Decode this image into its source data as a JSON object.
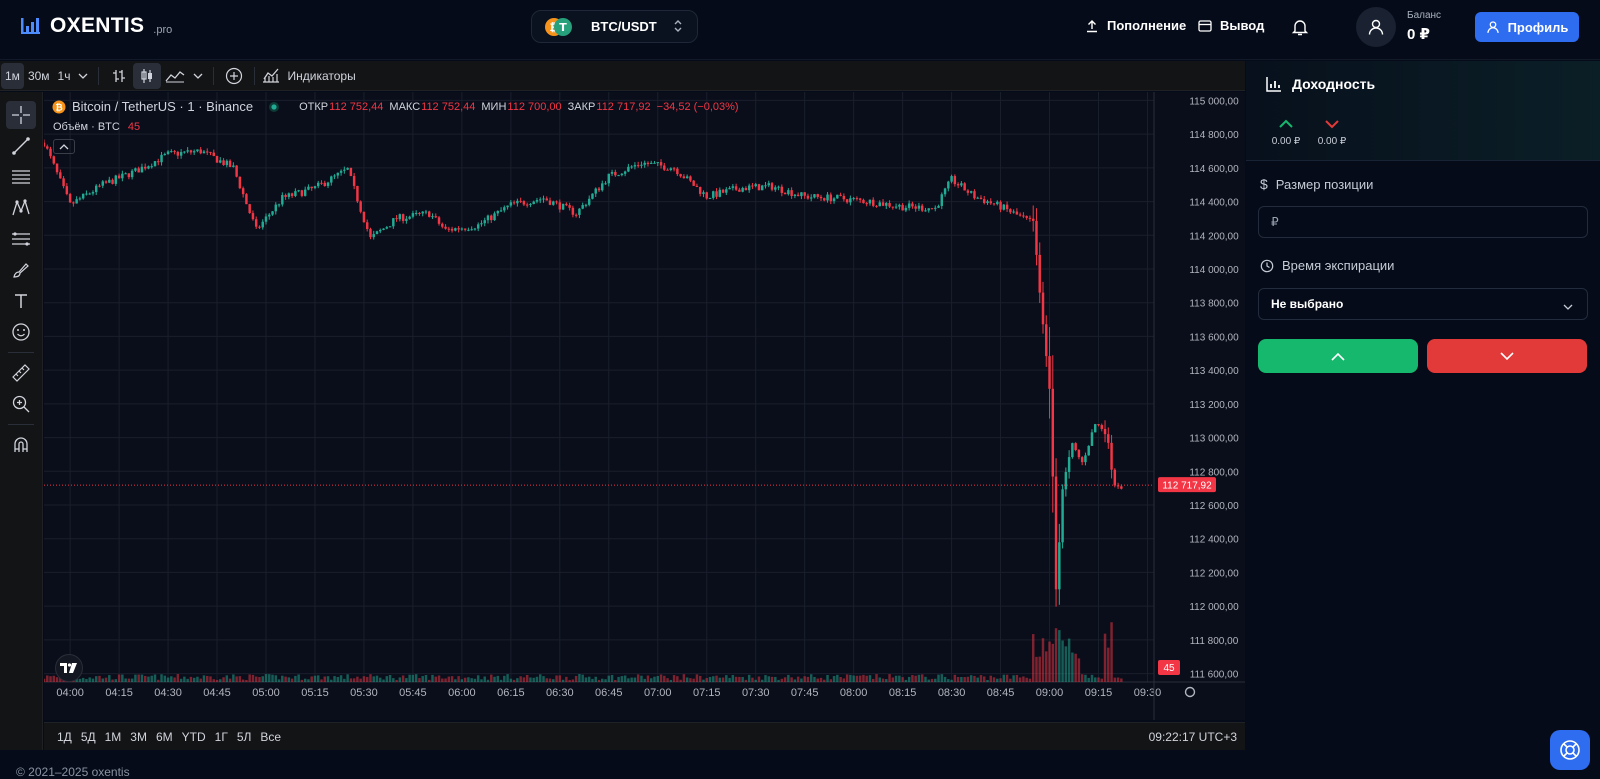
{
  "header": {
    "logo_name": "OXENTIS",
    "logo_sub": ".pro",
    "pair": "BTC/USDT",
    "deposit": "Пополнение",
    "withdraw": "Вывод",
    "balance_label": "Баланс",
    "balance_value": "0 ₽",
    "profile": "Профиль",
    "colors": {
      "accent": "#2e6cf0",
      "up": "#15b86d",
      "down": "#e23939"
    }
  },
  "toolbar": {
    "timeframes": [
      "1м",
      "30м",
      "1ч"
    ],
    "active_timeframe": "1м",
    "indicators": "Индикаторы",
    "icons": [
      "bar-chart-icon",
      "candles-icon",
      "area-chart-icon",
      "chevron-down-icon",
      "add-compare-icon",
      "indicators-icon"
    ]
  },
  "left_tools": [
    "crosshair-icon",
    "trend-line-icon",
    "horizontal-lines-icon",
    "pattern-icon",
    "fib-icon",
    "brush-icon",
    "text-icon",
    "emoji-icon",
    "ruler-icon",
    "zoom-icon",
    "magnet-icon"
  ],
  "chart": {
    "symbol": "Bitcoin / TetherUS · 1 · Binance",
    "o_label": "ОТКР",
    "o": "112 752,44",
    "h_label": "МАКС",
    "h": "112 752,44",
    "l_label": "МИН",
    "l": "112 700,00",
    "c_label": "ЗАКР",
    "c": "112 717,92",
    "change": "−34,52 (−0,03%)",
    "volume_label": "Объём · BTC",
    "volume_value": "45",
    "last_price_tag": "112 717,92",
    "volume_tag": "45",
    "y_ticks": [
      "115 000,00",
      "114 800,00",
      "114 600,00",
      "114 400,00",
      "114 200,00",
      "114 000,00",
      "113 800,00",
      "113 600,00",
      "113 400,00",
      "113 200,00",
      "113 000,00",
      "112 800,00",
      "112 600,00",
      "112 400,00",
      "112 200,00",
      "112 000,00",
      "111 800,00",
      "111 600,00"
    ],
    "x_ticks": [
      "04:00",
      "04:15",
      "04:30",
      "04:45",
      "05:00",
      "05:15",
      "05:30",
      "05:45",
      "06:00",
      "06:15",
      "06:30",
      "06:45",
      "07:00",
      "07:15",
      "07:30",
      "07:45",
      "08:00",
      "08:15",
      "08:30",
      "08:45",
      "09:00",
      "09:15",
      "09:30"
    ]
  },
  "chart_data": {
    "type": "candlestick",
    "title": "Bitcoin / TetherUS · 1 · Binance",
    "ylim": [
      111550,
      115050
    ],
    "x_range": [
      "03:52",
      "09:22"
    ],
    "last_price": 112717.92,
    "price_path": [
      {
        "t": "03:52",
        "p": 114750
      },
      {
        "t": "04:00",
        "p": 114380
      },
      {
        "t": "04:10",
        "p": 114500
      },
      {
        "t": "04:20",
        "p": 114580
      },
      {
        "t": "04:30",
        "p": 114680
      },
      {
        "t": "04:40",
        "p": 114700
      },
      {
        "t": "04:50",
        "p": 114600
      },
      {
        "t": "04:57",
        "p": 114230
      },
      {
        "t": "05:05",
        "p": 114420
      },
      {
        "t": "05:15",
        "p": 114480
      },
      {
        "t": "05:25",
        "p": 114590
      },
      {
        "t": "05:32",
        "p": 114180
      },
      {
        "t": "05:40",
        "p": 114300
      },
      {
        "t": "05:50",
        "p": 114330
      },
      {
        "t": "05:55",
        "p": 114230
      },
      {
        "t": "06:05",
        "p": 114260
      },
      {
        "t": "06:15",
        "p": 114380
      },
      {
        "t": "06:25",
        "p": 114420
      },
      {
        "t": "06:35",
        "p": 114330
      },
      {
        "t": "06:45",
        "p": 114550
      },
      {
        "t": "06:55",
        "p": 114630
      },
      {
        "t": "07:05",
        "p": 114600
      },
      {
        "t": "07:15",
        "p": 114430
      },
      {
        "t": "07:25",
        "p": 114480
      },
      {
        "t": "07:35",
        "p": 114490
      },
      {
        "t": "07:45",
        "p": 114430
      },
      {
        "t": "07:55",
        "p": 114420
      },
      {
        "t": "08:05",
        "p": 114400
      },
      {
        "t": "08:15",
        "p": 114370
      },
      {
        "t": "08:25",
        "p": 114360
      },
      {
        "t": "08:30",
        "p": 114530
      },
      {
        "t": "08:37",
        "p": 114430
      },
      {
        "t": "08:45",
        "p": 114370
      },
      {
        "t": "08:55",
        "p": 114270
      },
      {
        "t": "08:58",
        "p": 113650
      },
      {
        "t": "09:00",
        "p": 113300
      },
      {
        "t": "09:01",
        "p": 112750
      },
      {
        "t": "09:02",
        "p": 112100
      },
      {
        "t": "09:04",
        "p": 112700
      },
      {
        "t": "09:07",
        "p": 112950
      },
      {
        "t": "09:10",
        "p": 112850
      },
      {
        "t": "09:14",
        "p": 113080
      },
      {
        "t": "09:17",
        "p": 113050
      },
      {
        "t": "09:20",
        "p": 112730
      },
      {
        "t": "09:22",
        "p": 112717.92
      }
    ]
  },
  "bottom_bar": {
    "ranges": [
      "1Д",
      "5Д",
      "1М",
      "3М",
      "6М",
      "YTD",
      "1Г",
      "5Л",
      "Все"
    ],
    "clock": "09:22:17 UTC+3"
  },
  "panel": {
    "yield_title": "Доходность",
    "up_value": "0.00 ₽",
    "down_value": "0.00 ₽",
    "position_label": "Размер позиции",
    "position_placeholder": "₽",
    "expiry_label": "Время экспирации",
    "expiry_value": "Не выбрано"
  },
  "footer": "© 2021–2025 oxentis"
}
